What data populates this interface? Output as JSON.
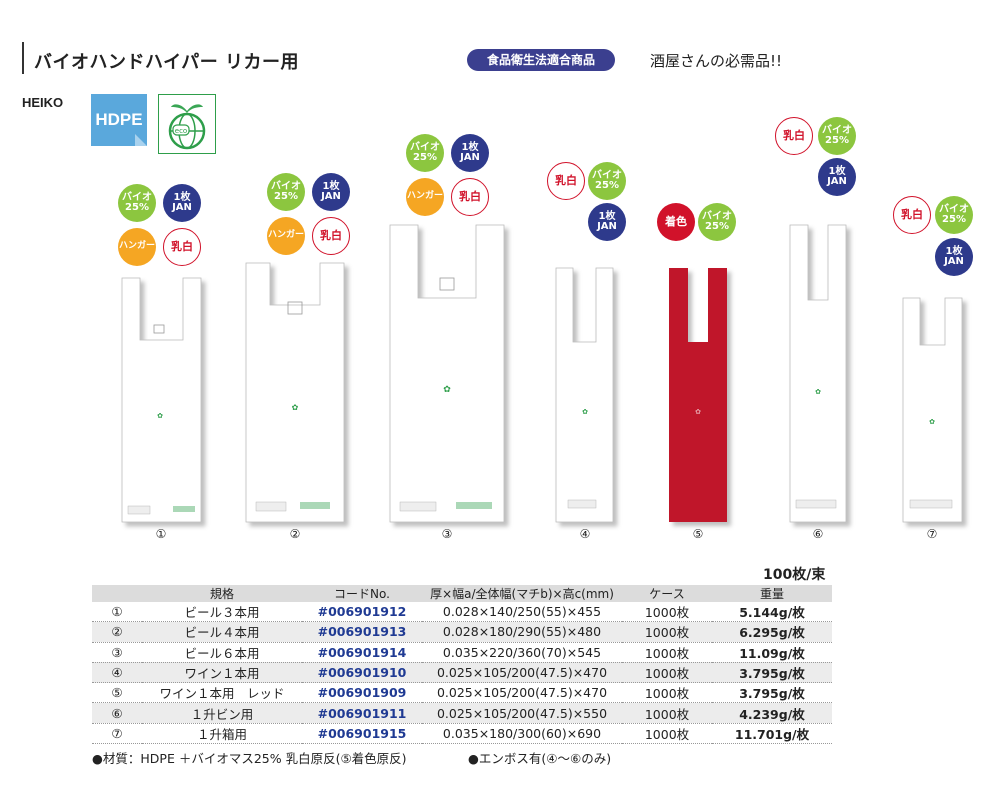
{
  "header": {
    "title": "バイオハンドハイパー リカー用",
    "food_badge": "食品衛生法適合商品",
    "tagline": "酒屋さんの必需品!!",
    "brand": "HEIKO",
    "material_icon": "HDPE"
  },
  "badges": {
    "bio": [
      "バイオ",
      "25%"
    ],
    "jan": [
      "1枚",
      "JAN"
    ],
    "hanger": "ハンガー",
    "nyuhaku": "乳白",
    "chakushoku": "着色"
  },
  "bags": [
    {
      "num": "①"
    },
    {
      "num": "②"
    },
    {
      "num": "③"
    },
    {
      "num": "④"
    },
    {
      "num": "⑤"
    },
    {
      "num": "⑥"
    },
    {
      "num": "⑦"
    }
  ],
  "table": {
    "unit": "100枚/束",
    "headers": [
      "",
      "規格",
      "コードNo.",
      "厚×幅a/全体幅(マチb)×高c(mm)",
      "ケース",
      "重量"
    ],
    "rows": [
      [
        "①",
        "ビール３本用",
        "#006901912",
        "0.028×140/250(55)×455",
        "1000枚",
        "5.144g/枚"
      ],
      [
        "②",
        "ビール４本用",
        "#006901913",
        "0.028×180/290(55)×480",
        "1000枚",
        "6.295g/枚"
      ],
      [
        "③",
        "ビール６本用",
        "#006901914",
        "0.035×220/360(70)×545",
        "1000枚",
        "11.09g/枚"
      ],
      [
        "④",
        "ワイン１本用",
        "#006901910",
        "0.025×105/200(47.5)×470",
        "1000枚",
        "3.795g/枚"
      ],
      [
        "⑤",
        "ワイン１本用　レッド",
        "#006901909",
        "0.025×105/200(47.5)×470",
        "1000枚",
        "3.795g/枚"
      ],
      [
        "⑥",
        "１升ビン用",
        "#006901911",
        "0.025×105/200(47.5)×550",
        "1000枚",
        "4.239g/枚"
      ],
      [
        "⑦",
        "１升箱用",
        "#006901915",
        "0.035×180/300(60)×690",
        "1000枚",
        "11.701g/枚"
      ]
    ]
  },
  "footer": {
    "material": "●材質：HDPE ＋バイオマス25% 乳白原反(⑤着色原反)",
    "emboss": "●エンボス有(④〜⑥のみ)"
  },
  "colors": {
    "bio_green": "#8cc63f",
    "jan_navy": "#2e3a8c",
    "hanger_orange": "#f5a623",
    "red": "#d1122a",
    "code_blue": "#1f3a93"
  }
}
